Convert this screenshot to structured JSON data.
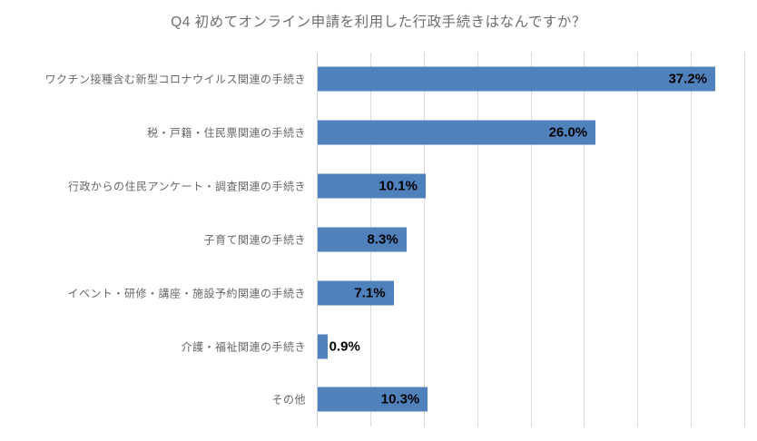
{
  "colors": {
    "bar": "#4f81bd",
    "gridline": "#d9d9d9",
    "axis": "#d0d0d0",
    "title_text": "#6e6e6e",
    "label_text": "#666666",
    "value_text": "#000000"
  },
  "chart_data": {
    "type": "bar",
    "orientation": "horizontal",
    "title": "Q4 初めてオンライン申請を利用した行政手続きはなんですか？",
    "categories": [
      "ワクチン接種含む新型コロナウイルス関連の手続き",
      "税・戸籍・住民票関連の手続き",
      "行政からの住民アンケート・調査関連の手続き",
      "子育て関連の手続き",
      "イベント・研修・講座・施設予約関連の手続き",
      "介護・福祉関連の手続き",
      "その他"
    ],
    "values": [
      37.2,
      26.0,
      10.1,
      8.3,
      7.1,
      0.9,
      10.3
    ],
    "value_labels": [
      "37.2%",
      "26.0%",
      "10.1%",
      "8.3%",
      "7.1%",
      "0.9%",
      "10.3%"
    ],
    "xlabel": "",
    "ylabel": "",
    "xlim": [
      0,
      40
    ],
    "gridline_interval": 5,
    "grid": true,
    "legend": false,
    "axis_tick_labels_shown": false
  }
}
